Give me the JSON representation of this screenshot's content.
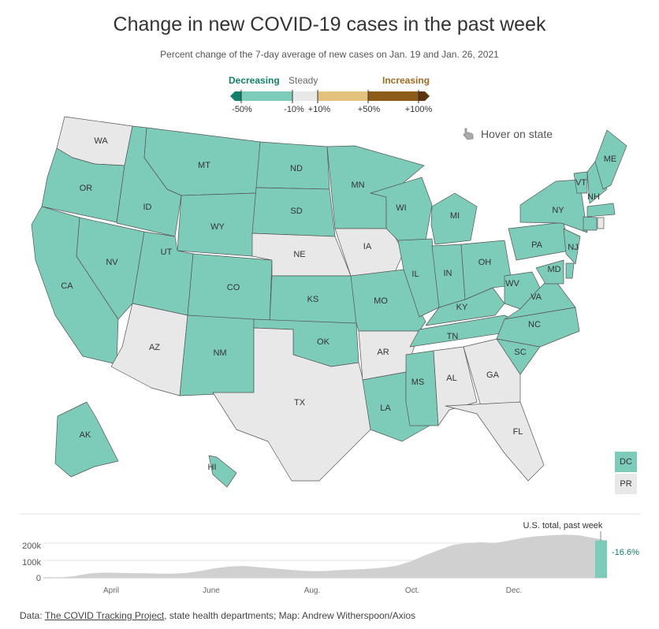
{
  "title": "Change in new COVID-19 cases in the past week",
  "subtitle": "Percent change of the 7-day average of new cases on Jan. 19 and Jan. 26, 2021",
  "legend": {
    "decreasing": "Decreasing",
    "steady": "Steady",
    "increasing": "Increasing",
    "ticks": [
      "-50%",
      "-10%",
      "+10%",
      "+50%",
      "+100%"
    ],
    "colors": [
      "#13806b",
      "#7dcbb9",
      "#e8e8e8",
      "#e3c27e",
      "#8e5c1a",
      "#5a3510"
    ]
  },
  "hover_hint": "Hover on state",
  "map": {
    "colors": {
      "decreasing": "#7dcbb9",
      "steady": "#e8e8e8"
    },
    "states": [
      {
        "abbr": "WA",
        "cat": "steady"
      },
      {
        "abbr": "OR",
        "cat": "decreasing"
      },
      {
        "abbr": "CA",
        "cat": "decreasing"
      },
      {
        "abbr": "ID",
        "cat": "decreasing"
      },
      {
        "abbr": "NV",
        "cat": "decreasing"
      },
      {
        "abbr": "MT",
        "cat": "decreasing"
      },
      {
        "abbr": "WY",
        "cat": "decreasing"
      },
      {
        "abbr": "UT",
        "cat": "decreasing"
      },
      {
        "abbr": "AZ",
        "cat": "steady"
      },
      {
        "abbr": "CO",
        "cat": "decreasing"
      },
      {
        "abbr": "NM",
        "cat": "decreasing"
      },
      {
        "abbr": "ND",
        "cat": "decreasing"
      },
      {
        "abbr": "SD",
        "cat": "decreasing"
      },
      {
        "abbr": "NE",
        "cat": "steady"
      },
      {
        "abbr": "KS",
        "cat": "decreasing"
      },
      {
        "abbr": "OK",
        "cat": "decreasing"
      },
      {
        "abbr": "TX",
        "cat": "steady"
      },
      {
        "abbr": "MN",
        "cat": "decreasing"
      },
      {
        "abbr": "IA",
        "cat": "steady"
      },
      {
        "abbr": "MO",
        "cat": "decreasing"
      },
      {
        "abbr": "AR",
        "cat": "steady"
      },
      {
        "abbr": "LA",
        "cat": "decreasing"
      },
      {
        "abbr": "WI",
        "cat": "decreasing"
      },
      {
        "abbr": "IL",
        "cat": "decreasing"
      },
      {
        "abbr": "MS",
        "cat": "decreasing"
      },
      {
        "abbr": "MI",
        "cat": "decreasing"
      },
      {
        "abbr": "IN",
        "cat": "decreasing"
      },
      {
        "abbr": "KY",
        "cat": "decreasing"
      },
      {
        "abbr": "TN",
        "cat": "decreasing"
      },
      {
        "abbr": "AL",
        "cat": "steady"
      },
      {
        "abbr": "OH",
        "cat": "decreasing"
      },
      {
        "abbr": "WV",
        "cat": "decreasing"
      },
      {
        "abbr": "VA",
        "cat": "decreasing"
      },
      {
        "abbr": "NC",
        "cat": "decreasing"
      },
      {
        "abbr": "SC",
        "cat": "decreasing"
      },
      {
        "abbr": "GA",
        "cat": "steady"
      },
      {
        "abbr": "FL",
        "cat": "steady"
      },
      {
        "abbr": "PA",
        "cat": "decreasing"
      },
      {
        "abbr": "NY",
        "cat": "decreasing"
      },
      {
        "abbr": "NJ",
        "cat": "decreasing"
      },
      {
        "abbr": "MD",
        "cat": "decreasing"
      },
      {
        "abbr": "DE",
        "cat": "decreasing"
      },
      {
        "abbr": "VT",
        "cat": "decreasing"
      },
      {
        "abbr": "NH",
        "cat": "decreasing"
      },
      {
        "abbr": "ME",
        "cat": "decreasing"
      },
      {
        "abbr": "MA",
        "cat": "decreasing"
      },
      {
        "abbr": "CT",
        "cat": "decreasing"
      },
      {
        "abbr": "RI",
        "cat": "steady"
      },
      {
        "abbr": "AK",
        "cat": "decreasing"
      },
      {
        "abbr": "HI",
        "cat": "decreasing"
      }
    ],
    "extras": [
      {
        "abbr": "DC",
        "cat": "decreasing"
      },
      {
        "abbr": "PR",
        "cat": "steady"
      }
    ]
  },
  "trend": {
    "annotation": "U.S. total, past week",
    "change_label": "-16.6%",
    "y_ticks": [
      "200k",
      "100k",
      "0"
    ],
    "x_ticks": [
      "April",
      "June",
      "Aug.",
      "Oct.",
      "Dec."
    ]
  },
  "chart_data": {
    "type": "area",
    "title": "U.S. total, past week",
    "xlabel": "",
    "ylabel": "",
    "ylim": [
      0,
      250000
    ],
    "x_tick_labels": [
      "April",
      "June",
      "Aug.",
      "Oct.",
      "Dec."
    ],
    "series": [
      {
        "name": "7-day average of new cases",
        "values": [
          0,
          2000,
          10000,
          25000,
          30000,
          28000,
          27000,
          26000,
          24000,
          24000,
          28000,
          40000,
          55000,
          65000,
          68000,
          62000,
          55000,
          48000,
          42000,
          38000,
          40000,
          45000,
          48000,
          52000,
          58000,
          70000,
          95000,
          130000,
          160000,
          190000,
          200000,
          205000,
          200000,
          215000,
          230000,
          240000,
          245000,
          248000,
          245000,
          230000,
          215000
        ]
      }
    ],
    "highlight": {
      "label": "U.S. total, past week",
      "change": "-16.6%"
    }
  },
  "footer": {
    "prefix": "Data: ",
    "link": "The COVID Tracking Project",
    "suffix": ", state health departments; Map: Andrew Witherspoon/Axios"
  }
}
